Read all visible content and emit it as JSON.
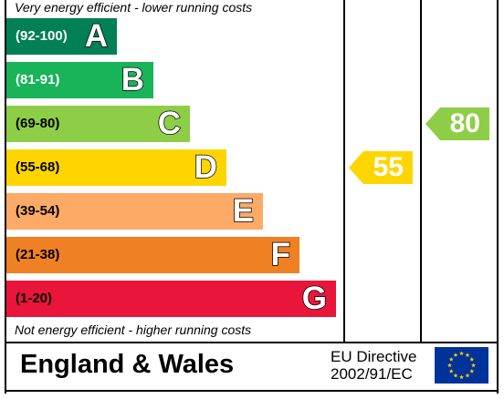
{
  "chart_data": {
    "type": "bar",
    "top_caption": "Very energy efficient - lower running costs",
    "bottom_caption": "Not energy efficient - higher running costs",
    "bands": [
      {
        "range": "(92-100)",
        "letter": "A",
        "color": "#008054",
        "text_color": "#ffffff"
      },
      {
        "range": "(81-91)",
        "letter": "B",
        "color": "#19b459",
        "text_color": "#ffffff"
      },
      {
        "range": "(69-80)",
        "letter": "C",
        "color": "#8dce46",
        "text_color": "#000000"
      },
      {
        "range": "(55-68)",
        "letter": "D",
        "color": "#ffd500",
        "text_color": "#000000"
      },
      {
        "range": "(39-54)",
        "letter": "E",
        "color": "#fcaa65",
        "text_color": "#000000"
      },
      {
        "range": "(21-38)",
        "letter": "F",
        "color": "#ef8023",
        "text_color": "#000000"
      },
      {
        "range": "(1-20)",
        "letter": "G",
        "color": "#e9153b",
        "text_color": "#000000"
      }
    ],
    "current": {
      "value": 55,
      "color": "#ffd500"
    },
    "potential": {
      "value": 80,
      "color": "#8dce46"
    }
  },
  "footer": {
    "region": "England & Wales",
    "directive_line1": "EU Directive",
    "directive_line2": "2002/91/EC",
    "flag_icon": "eu-flag-icon"
  }
}
